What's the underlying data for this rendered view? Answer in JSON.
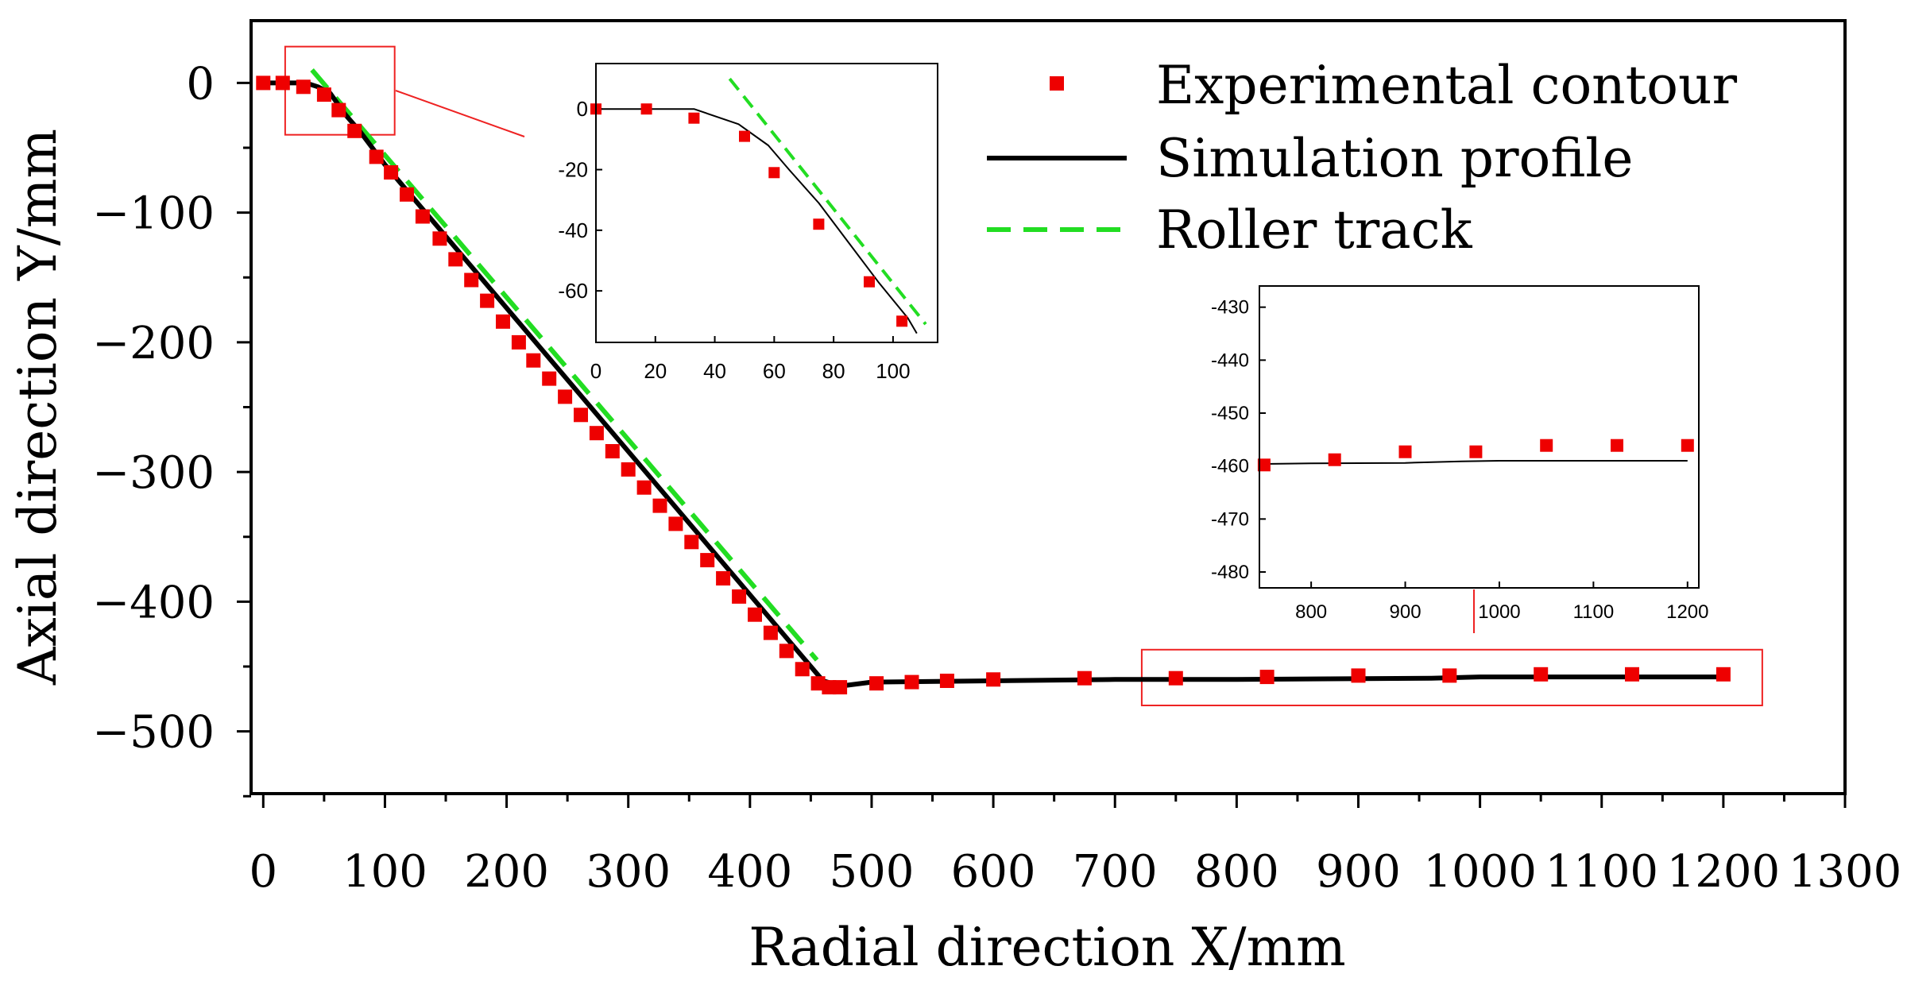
{
  "colors": {
    "experimental": "#ee0000",
    "simulation": "#000000",
    "roller": "#22dd22",
    "zoom_box": "#ee2222",
    "axis": "#000000"
  },
  "chart_data": {
    "main": {
      "type": "scatter",
      "xlabel": "Radial direction X/mm",
      "ylabel": "Axial direction Y/mm",
      "xlim": [
        -10,
        1300
      ],
      "ylim": [
        -548,
        48
      ],
      "xticks": [
        "0",
        "100",
        "200",
        "300",
        "400",
        "500",
        "600",
        "700",
        "800",
        "900",
        "1000",
        "1100",
        "1200",
        "1300"
      ],
      "yticks": [
        "0",
        "−100",
        "−200",
        "−300",
        "−400",
        "−500"
      ],
      "legend": {
        "position": "top-right",
        "entries": [
          "Experimental contour",
          "Simulation profile",
          "Roller track"
        ]
      },
      "series": [
        {
          "name": "Experimental contour",
          "style": "square-markers",
          "x": [
            0,
            16,
            33,
            50,
            62,
            75,
            93,
            105,
            118,
            131,
            145,
            158,
            171,
            184,
            197,
            210,
            222,
            235,
            248,
            261,
            274,
            287,
            300,
            313,
            326,
            339,
            352,
            365,
            378,
            391,
            404,
            417,
            430,
            443,
            456,
            465,
            474,
            504,
            533,
            562,
            600,
            675,
            750,
            825,
            900,
            975,
            1050,
            1125,
            1200
          ],
          "y": [
            0,
            0,
            -3,
            -9,
            -21,
            -37,
            -57,
            -69,
            -86,
            -103,
            -120,
            -136,
            -152,
            -168,
            -184,
            -200,
            -214,
            -228,
            -242,
            -256,
            -270,
            -284,
            -298,
            -312,
            -326,
            -340,
            -354,
            -368,
            -382,
            -396,
            -410,
            -424,
            -438,
            -452,
            -463,
            -466,
            -466,
            -463,
            -462,
            -461,
            -460,
            -459,
            -459,
            -458,
            -457,
            -457,
            -456,
            -456,
            -456
          ]
        },
        {
          "name": "Simulation profile",
          "style": "solid-line",
          "x": [
            0,
            20,
            35,
            45,
            55,
            68,
            80,
            100,
            460,
            475,
            500,
            600,
            700,
            800,
            960,
            1000,
            1100,
            1200
          ],
          "y": [
            0,
            0,
            0,
            -3,
            -8,
            -25,
            -38,
            -63,
            -461,
            -465,
            -462,
            -461,
            -460,
            -460,
            -459,
            -458,
            -458,
            -458
          ]
        },
        {
          "name": "Roller track",
          "style": "dashed-line",
          "x": [
            40,
            455
          ],
          "y": [
            10,
            -445
          ]
        }
      ],
      "zoom_boxes": [
        {
          "x_range": [
            18,
            108
          ],
          "y_range": [
            -40,
            28
          ]
        },
        {
          "x_range": [
            722,
            1232
          ],
          "y_range": [
            -480,
            -437
          ]
        }
      ]
    },
    "inset_start": {
      "type": "scatter",
      "xlim": [
        0,
        115
      ],
      "ylim": [
        -77,
        15
      ],
      "xticks": [
        "0",
        "20",
        "40",
        "60",
        "80",
        "100"
      ],
      "yticks": [
        "0",
        "-20",
        "-40",
        "-60"
      ],
      "series": [
        {
          "name": "Experimental contour",
          "x": [
            0,
            17,
            33,
            50,
            60,
            75,
            92,
            103
          ],
          "y": [
            0,
            0,
            -3,
            -9,
            -21,
            -38,
            -57,
            -70
          ]
        },
        {
          "name": "Simulation profile",
          "x": [
            0,
            33,
            48,
            58,
            65,
            75,
            85,
            95,
            105,
            108
          ],
          "y": [
            0,
            0,
            -5,
            -12,
            -20,
            -31,
            -44,
            -57,
            -69,
            -74
          ]
        },
        {
          "name": "Roller track",
          "x": [
            45,
            111
          ],
          "y": [
            10,
            -71
          ]
        }
      ]
    },
    "inset_end": {
      "type": "scatter",
      "xlim": [
        745,
        1212
      ],
      "ylim": [
        -483,
        -426
      ],
      "xticks": [
        "800",
        "900",
        "1000",
        "1100",
        "1200"
      ],
      "yticks": [
        "-430",
        "-440",
        "-450",
        "-460",
        "-470",
        "-480"
      ],
      "series": [
        {
          "name": "Experimental contour",
          "x": [
            750,
            825,
            900,
            975,
            1050,
            1125,
            1200
          ],
          "y": [
            -459.8,
            -458.8,
            -457.3,
            -457.3,
            -456.1,
            -456.1,
            -456.1
          ]
        },
        {
          "name": "Simulation profile",
          "x": [
            750,
            800,
            900,
            960,
            1000,
            1100,
            1200
          ],
          "y": [
            -459.6,
            -459.5,
            -459.4,
            -459.1,
            -459.0,
            -459.0,
            -459.0
          ]
        }
      ]
    }
  }
}
